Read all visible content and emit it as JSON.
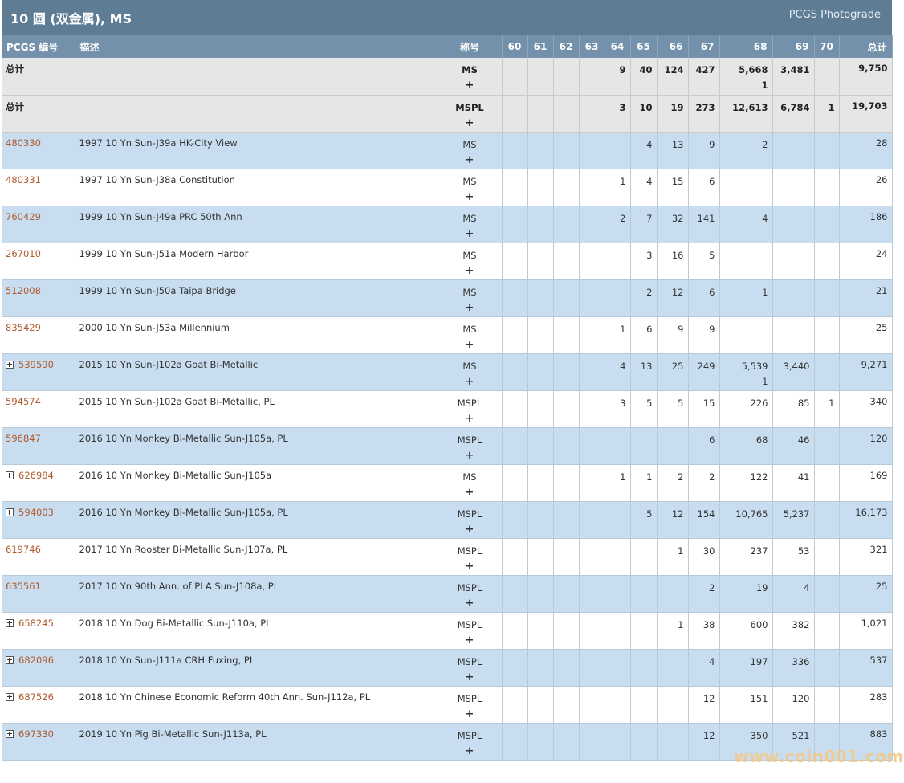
{
  "header": {
    "title": "10 圆 (双金属), MS",
    "brand": "PCGS Photograde"
  },
  "columns": [
    "PCGS 编号",
    "描述",
    "称号",
    "60",
    "61",
    "62",
    "63",
    "64",
    "65",
    "66",
    "67",
    "68",
    "69",
    "70",
    "总计"
  ],
  "grades": [
    "60",
    "61",
    "62",
    "63",
    "64",
    "65",
    "66",
    "67",
    "68",
    "69",
    "70"
  ],
  "totals": [
    {
      "label": "总计",
      "designation": "MS",
      "plus": "+",
      "counts": {
        "64": "9",
        "65": "40",
        "66": "124",
        "67": "427",
        "68": "5,668",
        "68b": "1",
        "69": "3,481"
      },
      "total": "9,750"
    },
    {
      "label": "总计",
      "designation": "MSPL",
      "plus": "+",
      "counts": {
        "64": "3",
        "65": "10",
        "66": "19",
        "67": "273",
        "68": "12,613",
        "69": "6,784",
        "70": "1"
      },
      "total": "19,703"
    }
  ],
  "rows": [
    {
      "pcgs": "480330",
      "expander": false,
      "description": "1997 10 Yn Sun-J39a HK-City View",
      "designation": "MS",
      "plus": "+",
      "counts": {
        "65": "4",
        "66": "13",
        "67": "9",
        "68": "2"
      },
      "total": "28"
    },
    {
      "pcgs": "480331",
      "expander": false,
      "description": "1997 10 Yn Sun-J38a Constitution",
      "designation": "MS",
      "plus": "+",
      "counts": {
        "64": "1",
        "65": "4",
        "66": "15",
        "67": "6"
      },
      "total": "26"
    },
    {
      "pcgs": "760429",
      "expander": false,
      "description": "1999 10 Yn Sun-J49a PRC 50th Ann",
      "designation": "MS",
      "plus": "+",
      "counts": {
        "64": "2",
        "65": "7",
        "66": "32",
        "67": "141",
        "68": "4"
      },
      "total": "186"
    },
    {
      "pcgs": "267010",
      "expander": false,
      "description": "1999 10 Yn Sun-J51a Modern Harbor",
      "designation": "MS",
      "plus": "+",
      "counts": {
        "65": "3",
        "66": "16",
        "67": "5"
      },
      "total": "24"
    },
    {
      "pcgs": "512008",
      "expander": false,
      "description": "1999 10 Yn Sun-J50a Taipa Bridge",
      "designation": "MS",
      "plus": "+",
      "counts": {
        "65": "2",
        "66": "12",
        "67": "6",
        "68": "1"
      },
      "total": "21"
    },
    {
      "pcgs": "835429",
      "expander": false,
      "description": "2000 10 Yn Sun-J53a Millennium",
      "designation": "MS",
      "plus": "+",
      "counts": {
        "64": "1",
        "65": "6",
        "66": "9",
        "67": "9"
      },
      "total": "25"
    },
    {
      "pcgs": "539590",
      "expander": true,
      "description": "2015 10 Yn Sun-J102a Goat Bi-Metallic",
      "designation": "MS",
      "plus": "+",
      "counts": {
        "64": "4",
        "65": "13",
        "66": "25",
        "67": "249",
        "68": "5,539",
        "68b": "1",
        "69": "3,440"
      },
      "total": "9,271"
    },
    {
      "pcgs": "594574",
      "expander": false,
      "description": "2015 10 Yn Sun-J102a Goat Bi-Metallic, PL",
      "designation": "MSPL",
      "plus": "+",
      "counts": {
        "64": "3",
        "65": "5",
        "66": "5",
        "67": "15",
        "68": "226",
        "69": "85",
        "70": "1"
      },
      "total": "340"
    },
    {
      "pcgs": "596847",
      "expander": false,
      "description": "2016 10 Yn Monkey Bi-Metallic Sun-J105a, PL",
      "designation": "MSPL",
      "plus": "+",
      "counts": {
        "67": "6",
        "68": "68",
        "69": "46"
      },
      "total": "120"
    },
    {
      "pcgs": "626984",
      "expander": true,
      "description": "2016 10 Yn Monkey Bi-Metallic Sun-J105a",
      "designation": "MS",
      "plus": "+",
      "counts": {
        "64": "1",
        "65": "1",
        "66": "2",
        "67": "2",
        "68": "122",
        "69": "41"
      },
      "total": "169"
    },
    {
      "pcgs": "594003",
      "expander": true,
      "description": "2016 10 Yn Monkey Bi-Metallic Sun-J105a, PL",
      "designation": "MSPL",
      "plus": "+",
      "counts": {
        "65": "5",
        "66": "12",
        "67": "154",
        "68": "10,765",
        "69": "5,237"
      },
      "total": "16,173"
    },
    {
      "pcgs": "619746",
      "expander": false,
      "description": "2017 10 Yn Rooster Bi-Metallic Sun-J107a, PL",
      "designation": "MSPL",
      "plus": "+",
      "counts": {
        "66": "1",
        "67": "30",
        "68": "237",
        "69": "53"
      },
      "total": "321"
    },
    {
      "pcgs": "635561",
      "expander": false,
      "description": "2017 10 Yn 90th Ann. of PLA Sun-J108a, PL",
      "designation": "MSPL",
      "plus": "+",
      "counts": {
        "67": "2",
        "68": "19",
        "69": "4"
      },
      "total": "25"
    },
    {
      "pcgs": "658245",
      "expander": true,
      "description": "2018 10 Yn Dog Bi-Metallic Sun-J110a, PL",
      "designation": "MSPL",
      "plus": "+",
      "counts": {
        "66": "1",
        "67": "38",
        "68": "600",
        "69": "382"
      },
      "total": "1,021"
    },
    {
      "pcgs": "682096",
      "expander": true,
      "description": "2018 10 Yn Sun-J111a CRH Fuxing, PL",
      "designation": "MSPL",
      "plus": "+",
      "counts": {
        "67": "4",
        "68": "197",
        "69": "336"
      },
      "total": "537"
    },
    {
      "pcgs": "687526",
      "expander": true,
      "description": "2018 10 Yn Chinese Economic Reform 40th Ann. Sun-J112a, PL",
      "designation": "MSPL",
      "plus": "+",
      "counts": {
        "67": "12",
        "68": "151",
        "69": "120"
      },
      "total": "283"
    },
    {
      "pcgs": "697330",
      "expander": true,
      "description": "2019 10 Yn Pig Bi-Metallic Sun-J113a, PL",
      "designation": "MSPL",
      "plus": "+",
      "counts": {
        "67": "12",
        "68": "350",
        "69": "521"
      },
      "total": "883"
    }
  ],
  "watermark": "www.coin001.com",
  "colors": {
    "header": "#5f7c95",
    "column_header": "#7391ab",
    "row_blue": "#c8def0",
    "total_row": "#e6e6e6",
    "link": "#b05a2c"
  }
}
